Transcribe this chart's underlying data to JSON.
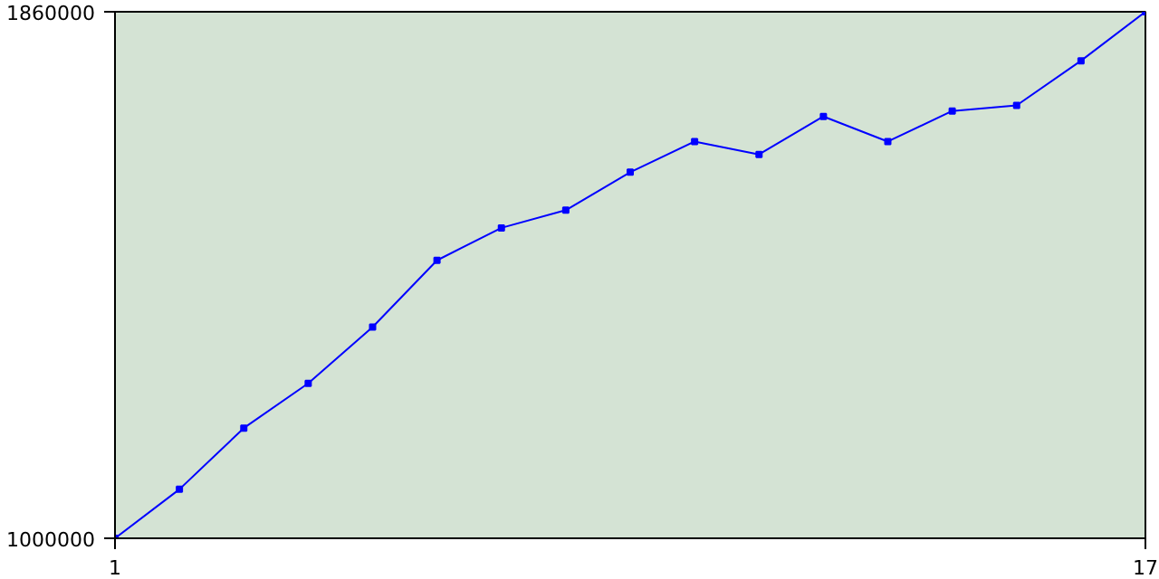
{
  "chart_data": {
    "type": "line",
    "x": [
      1,
      2,
      3,
      4,
      5,
      6,
      7,
      8,
      9,
      10,
      11,
      12,
      13,
      14,
      15,
      16,
      17
    ],
    "series": [
      {
        "color": "#0000ff",
        "values": [
          1000000,
          1080000,
          1180000,
          1253000,
          1345000,
          1454000,
          1507000,
          1536000,
          1598000,
          1648000,
          1627000,
          1689000,
          1648000,
          1698000,
          1707000,
          1780000,
          1860000
        ]
      }
    ],
    "xlim": [
      1,
      17
    ],
    "ylim": [
      1000000,
      1860000
    ],
    "xticks": [
      1,
      17
    ],
    "yticks": [
      1000000,
      1860000
    ],
    "marker": "square",
    "line_style": "solid"
  }
}
